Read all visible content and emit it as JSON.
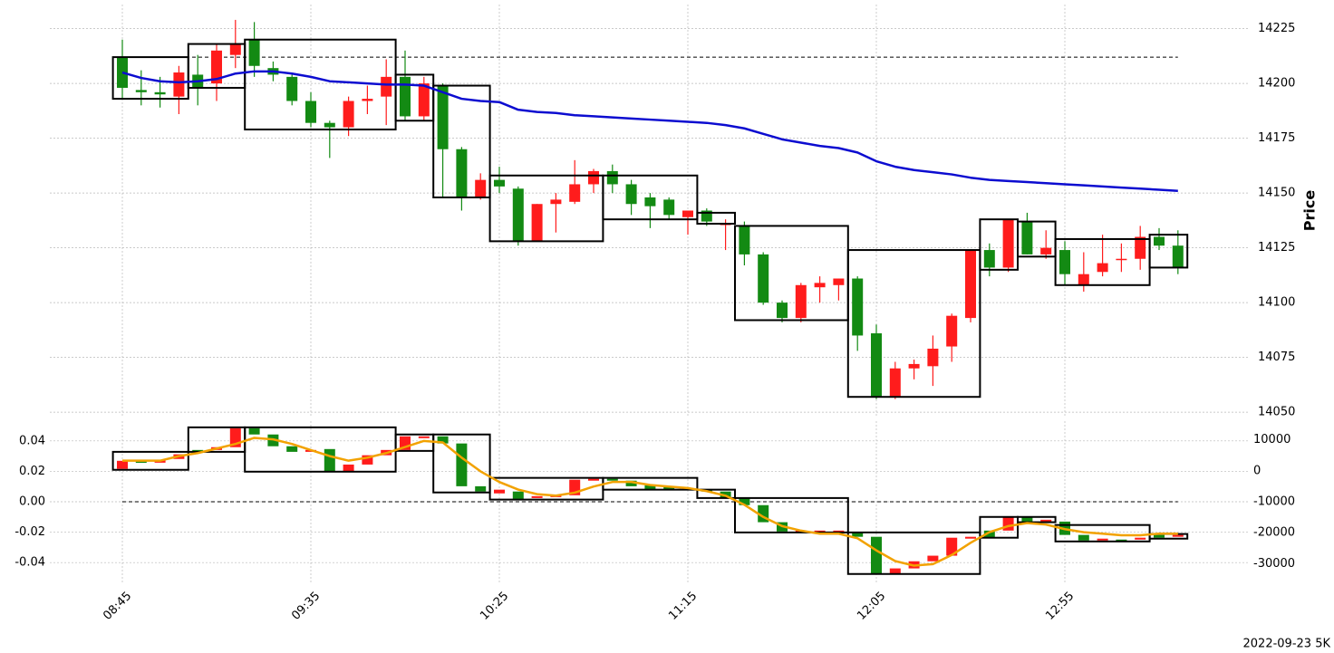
{
  "chart_data": [
    {
      "type": "candlestick",
      "ylabel": "Price",
      "yaxis_position": "right",
      "ylim": [
        14048,
        14236
      ],
      "yticks": [
        14050,
        14075,
        14100,
        14125,
        14150,
        14175,
        14200,
        14225
      ],
      "grid": true,
      "up_color": "#ff1c1c",
      "down_color": "#138a13",
      "candles": {
        "open": [
          14212,
          14197,
          14196,
          14194,
          14204,
          14200,
          14213,
          14220,
          14207,
          14203,
          14192,
          14182,
          14180,
          14192,
          14194,
          14203,
          14185,
          14199,
          14170,
          14148,
          14156,
          14152,
          14128,
          14145,
          14146,
          14154,
          14160,
          14154,
          14148,
          14147,
          14139,
          14142,
          14136,
          14135,
          14122,
          14100,
          14093,
          14107,
          14108,
          14111,
          14086,
          14057,
          14070,
          14071,
          14080,
          14093,
          14124,
          14116,
          14137,
          14122,
          14124,
          14108,
          14114,
          14120,
          14120,
          14130,
          14126
        ],
        "high": [
          14220,
          14206,
          14203,
          14208,
          14213,
          14218,
          14229,
          14228,
          14210,
          14204,
          14196,
          14183,
          14194,
          14199,
          14211,
          14215,
          14203,
          14200,
          14171,
          14159,
          14162,
          14153,
          14145,
          14150,
          14165,
          14161,
          14163,
          14156,
          14150,
          14148,
          14142,
          14143,
          14138,
          14137,
          14123,
          14101,
          14109,
          14112,
          14111,
          14112,
          14090,
          14073,
          14074,
          14085,
          14095,
          14124,
          14127,
          14138,
          14141,
          14133,
          14128,
          14123,
          14131,
          14127,
          14135,
          14134,
          14133
        ],
        "low": [
          14193,
          14190,
          14189,
          14186,
          14190,
          14192,
          14207,
          14203,
          14201,
          14190,
          14180,
          14166,
          14176,
          14186,
          14181,
          14183,
          14183,
          14148,
          14142,
          14147,
          14150,
          14126,
          14128,
          14132,
          14145,
          14150,
          14150,
          14140,
          14134,
          14138,
          14131,
          14135,
          14124,
          14117,
          14099,
          14091,
          14091,
          14100,
          14101,
          14078,
          14056,
          14056,
          14065,
          14062,
          14073,
          14091,
          14112,
          14114,
          14122,
          14120,
          14108,
          14105,
          14112,
          14114,
          14115,
          14124,
          14113
        ],
        "close": [
          14198,
          14196,
          14195,
          14205,
          14198,
          14215,
          14218,
          14208,
          14204,
          14192,
          14182,
          14180,
          14192,
          14193,
          14203,
          14185,
          14200,
          14170,
          14148,
          14156,
          14153,
          14128,
          14145,
          14147,
          14154,
          14160,
          14154,
          14145,
          14144,
          14140,
          14142,
          14137,
          14136,
          14122,
          14100,
          14093,
          14108,
          14109,
          14111,
          14085,
          14057,
          14070,
          14072,
          14079,
          14094,
          14124,
          14116,
          14138,
          14122,
          14125,
          14113,
          14113,
          14118,
          14120,
          14130,
          14126,
          14116
        ]
      },
      "lines": [
        {
          "color": "#0c0cd0",
          "values": [
            14205,
            14202.5,
            14201,
            14200.5,
            14201,
            14202,
            14204.5,
            14205.5,
            14205.5,
            14204.5,
            14203,
            14201,
            14200.5,
            14200,
            14199.5,
            14199.5,
            14199,
            14196,
            14193,
            14192,
            14191.5,
            14188,
            14187,
            14186.5,
            14185.5,
            14185,
            14184.5,
            14184,
            14183.5,
            14183,
            14182.5,
            14182,
            14181,
            14179.5,
            14177,
            14174.5,
            14173,
            14171.5,
            14170.5,
            14168.5,
            14164.5,
            14162,
            14160.5,
            14159.5,
            14158.5,
            14157,
            14156,
            14155.5,
            14155,
            14154.5,
            14154,
            14153.5,
            14153,
            14152.5,
            14152,
            14151.5,
            14151
          ]
        }
      ],
      "boxes": [
        {
          "start": 0,
          "end": 3,
          "low": 14193,
          "high": 14212
        },
        {
          "start": 4,
          "end": 6,
          "low": 14198,
          "high": 14218
        },
        {
          "start": 7,
          "end": 14,
          "low": 14179,
          "high": 14220
        },
        {
          "start": 15,
          "end": 16,
          "low": 14183,
          "high": 14204
        },
        {
          "start": 17,
          "end": 19,
          "low": 14148,
          "high": 14199
        },
        {
          "start": 20,
          "end": 25,
          "low": 14128,
          "high": 14158
        },
        {
          "start": 26,
          "end": 30,
          "low": 14138,
          "high": 14158
        },
        {
          "start": 31,
          "end": 32,
          "low": 14136,
          "high": 14141
        },
        {
          "start": 33,
          "end": 38,
          "low": 14092,
          "high": 14135
        },
        {
          "start": 39,
          "end": 45,
          "low": 14057,
          "high": 14124
        },
        {
          "start": 46,
          "end": 47,
          "low": 14115,
          "high": 14138
        },
        {
          "start": 48,
          "end": 49,
          "low": 14121,
          "high": 14137
        },
        {
          "start": 50,
          "end": 54,
          "low": 14108,
          "high": 14129
        },
        {
          "start": 55,
          "end": 56,
          "low": 14116,
          "high": 14131
        }
      ],
      "level": 14212
    },
    {
      "type": "candlestick",
      "categories": [
        "08:45",
        null,
        null,
        null,
        null,
        null,
        null,
        null,
        null,
        null,
        "09:35",
        null,
        null,
        null,
        null,
        null,
        null,
        null,
        null,
        null,
        "10:25",
        null,
        null,
        null,
        null,
        null,
        null,
        null,
        null,
        null,
        "11:15",
        null,
        null,
        null,
        null,
        null,
        null,
        null,
        null,
        null,
        "12:05",
        null,
        null,
        null,
        null,
        null,
        null,
        null,
        null,
        null,
        "12:55",
        null,
        null,
        null,
        null,
        null,
        null
      ],
      "ylim": [
        -0.053,
        0.053
      ],
      "yticks": [
        -0.04,
        -0.02,
        {
          "value": 0,
          "label": "0.00"
        },
        0.02,
        0.04
      ],
      "y2lim": [
        -36000,
        16000
      ],
      "y2ticks": [
        -30000,
        -20000,
        -10000,
        0,
        10000
      ],
      "grid": true,
      "up_color": "#ff1c1c",
      "down_color": "#138a13",
      "candles": {
        "axis": "y2",
        "open": [
          600,
          3000,
          2600,
          3800,
          6700,
          6700,
          7600,
          13700,
          11700,
          7900,
          6100,
          7000,
          -300,
          2000,
          5000,
          6700,
          10500,
          11100,
          8800,
          -5000,
          -7300,
          -6700,
          -8800,
          -8500,
          -7900,
          -3200,
          -2600,
          -3200,
          -4700,
          -5000,
          -6100,
          -6100,
          -6700,
          -8800,
          -11100,
          -16600,
          -19900,
          -19900,
          -19900,
          -19900,
          -21300,
          -33300,
          -31500,
          -29200,
          -27400,
          -21900,
          -19300,
          -19300,
          -14900,
          -16600,
          -16400,
          -20700,
          -22500,
          -22200,
          -22200,
          -20700,
          -21300
        ],
        "close": [
          3200,
          2900,
          3500,
          5300,
          6100,
          7600,
          13700,
          11700,
          7900,
          6100,
          6700,
          -300,
          2000,
          5000,
          6700,
          11100,
          11100,
          8800,
          -5000,
          -6700,
          -6100,
          -9100,
          -8200,
          -7900,
          -2900,
          -2600,
          -3200,
          -5000,
          -6100,
          -6100,
          -5500,
          -6700,
          -8800,
          -11100,
          -16600,
          -19600,
          -19300,
          -19300,
          -19300,
          -21300,
          -33300,
          -31500,
          -29200,
          -27400,
          -21600,
          -21300,
          -21600,
          -14900,
          -16400,
          -15800,
          -20700,
          -22500,
          -21900,
          -22500,
          -21600,
          -21600,
          -20700
        ]
      },
      "lines": [
        {
          "color": "#f2a200",
          "values": [
            0.027,
            0.027,
            0.027,
            0.03,
            0.032,
            0.035,
            0.038,
            0.042,
            0.041,
            0.038,
            0.034,
            0.03,
            0.027,
            0.029,
            0.032,
            0.036,
            0.04,
            0.039,
            0.029,
            0.02,
            0.013,
            0.008,
            0.005,
            0.004,
            0.006,
            0.01,
            0.013,
            0.013,
            0.011,
            0.01,
            0.009,
            0.007,
            0.004,
            -0.002,
            -0.01,
            -0.016,
            -0.019,
            -0.021,
            -0.021,
            -0.024,
            -0.032,
            -0.039,
            -0.042,
            -0.041,
            -0.035,
            -0.027,
            -0.02,
            -0.016,
            -0.014,
            -0.015,
            -0.018,
            -0.02,
            -0.021,
            -0.022,
            -0.022,
            -0.021,
            -0.021
          ]
        }
      ],
      "boxes": [
        {
          "axis": "y2",
          "start": 0,
          "end": 3,
          "low": 300,
          "high": 6100
        },
        {
          "axis": "y2",
          "start": 4,
          "end": 6,
          "low": 6100,
          "high": 14000
        },
        {
          "axis": "y2",
          "start": 7,
          "end": 14,
          "low": -300,
          "high": 14000
        },
        {
          "axis": "y2",
          "start": 15,
          "end": 16,
          "low": 6400,
          "high": 11700
        },
        {
          "axis": "y2",
          "start": 17,
          "end": 19,
          "low": -7000,
          "high": 11700
        },
        {
          "axis": "y2",
          "start": 20,
          "end": 25,
          "low": -9300,
          "high": -2300
        },
        {
          "axis": "y2",
          "start": 26,
          "end": 30,
          "low": -6100,
          "high": -2300
        },
        {
          "axis": "y2",
          "start": 31,
          "end": 32,
          "low": -8800,
          "high": -6100
        },
        {
          "axis": "y2",
          "start": 33,
          "end": 38,
          "low": -19900,
          "high": -8800
        },
        {
          "axis": "y2",
          "start": 39,
          "end": 45,
          "low": -33300,
          "high": -19900
        },
        {
          "axis": "y2",
          "start": 46,
          "end": 47,
          "low": -21600,
          "high": -14900
        },
        {
          "axis": "y2",
          "start": 48,
          "end": 49,
          "low": -16600,
          "high": -14900
        },
        {
          "axis": "y2",
          "start": 50,
          "end": 54,
          "low": -22800,
          "high": -17500
        },
        {
          "axis": "y2",
          "start": 55,
          "end": 56,
          "low": -21900,
          "high": -20400
        }
      ],
      "level": 0
    }
  ],
  "footer": "2022-09-23 5K"
}
